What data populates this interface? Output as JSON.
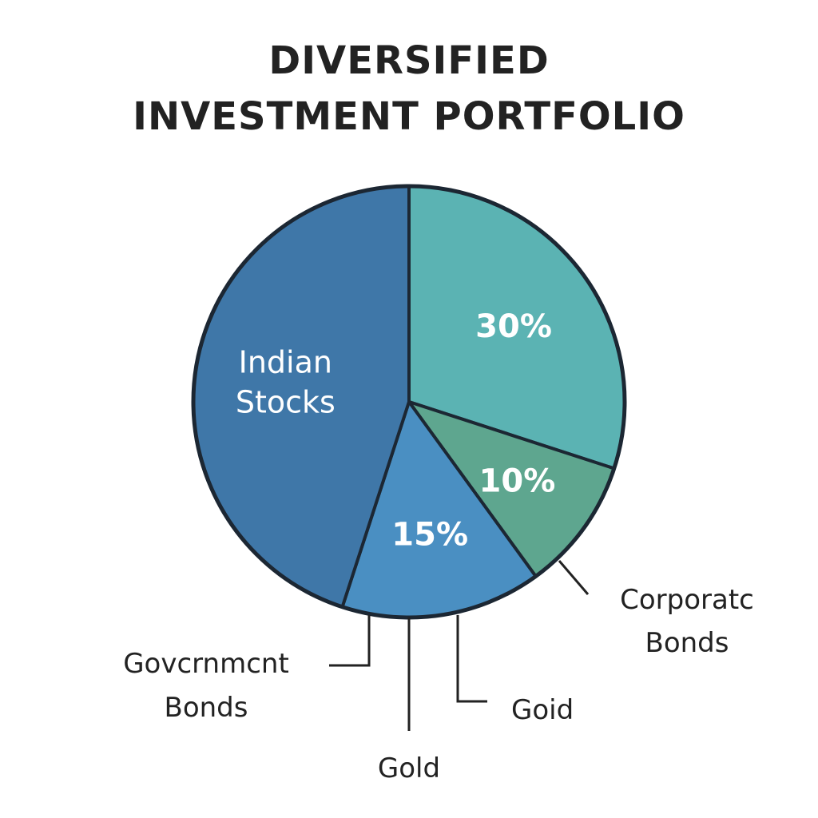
{
  "chart_data": {
    "type": "pie",
    "title_lines": [
      "DIVERSIFIED",
      "INVESTMENT PORTFOLIO"
    ],
    "slices": [
      {
        "label": "",
        "value": 30,
        "value_label": "30%",
        "color": "#5bb3b3"
      },
      {
        "label": "",
        "value": 10,
        "value_label": "10%",
        "color": "#5ea68f"
      },
      {
        "label": "",
        "value": 15,
        "value_label": "15%",
        "color": "#4a8fc2"
      },
      {
        "label": "Indian Stocks",
        "value": 45,
        "value_label": "",
        "color": "#3f77a8"
      }
    ],
    "external_labels": [
      "Corporatc Bonds",
      "Goid",
      "Gold",
      "Govcrnmcnt Bonds"
    ],
    "outline_color": "#1c2733"
  }
}
